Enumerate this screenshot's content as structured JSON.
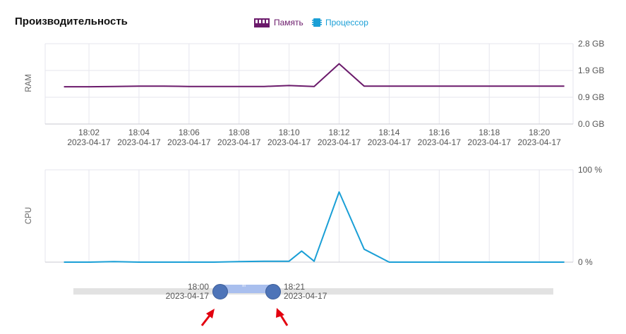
{
  "header": {
    "title": "Производительность",
    "legend": [
      {
        "label": "Память",
        "color": "#6b1a6b",
        "icon": "memory-icon"
      },
      {
        "label": "Процессор",
        "color": "#1a9fd6",
        "icon": "cpu-chip-icon"
      }
    ]
  },
  "chart_data": [
    {
      "type": "line",
      "ylabel": "RAM",
      "yticks": [
        "2.8 GB",
        "1.9 GB",
        "0.9 GB",
        "0.0 GB"
      ],
      "ylim": [
        0,
        2.8
      ],
      "x_time_labels": [
        "18:02",
        "18:04",
        "18:06",
        "18:08",
        "18:10",
        "18:12",
        "18:14",
        "18:16",
        "18:18",
        "18:20"
      ],
      "x_date_label": "2023-04-17",
      "grid": true,
      "series": [
        {
          "name": "Память",
          "color": "#6b1a6b",
          "x": [
            "18:01",
            "18:02",
            "18:03",
            "18:04",
            "18:05",
            "18:06",
            "18:07",
            "18:08",
            "18:09",
            "18:10",
            "18:11",
            "18:12",
            "18:13",
            "18:14",
            "18:15",
            "18:16",
            "18:17",
            "18:18",
            "18:19",
            "18:20",
            "18:21"
          ],
          "values": [
            1.3,
            1.3,
            1.31,
            1.32,
            1.32,
            1.31,
            1.31,
            1.31,
            1.31,
            1.34,
            1.31,
            2.1,
            1.32,
            1.32,
            1.32,
            1.32,
            1.32,
            1.32,
            1.32,
            1.32,
            1.32
          ]
        }
      ]
    },
    {
      "type": "line",
      "ylabel": "CPU",
      "yticks": [
        "100 %",
        "0 %"
      ],
      "ylim": [
        0,
        100
      ],
      "grid": true,
      "series": [
        {
          "name": "Процессор",
          "color": "#1a9fd6",
          "x": [
            "18:01",
            "18:02",
            "18:03",
            "18:04",
            "18:05",
            "18:06",
            "18:07",
            "18:08",
            "18:09",
            "18:10",
            "18:10:30",
            "18:11",
            "18:12",
            "18:13",
            "18:14",
            "18:15",
            "18:16",
            "18:17",
            "18:18",
            "18:19",
            "18:20",
            "18:21"
          ],
          "values": [
            0,
            0,
            0.5,
            0,
            0,
            0,
            0,
            0.5,
            1,
            1,
            12,
            1,
            76,
            14,
            0,
            0,
            0,
            0,
            0,
            0,
            0,
            0
          ]
        }
      ]
    }
  ],
  "time_range": {
    "start_time": "18:00",
    "start_date": "2023-04-17",
    "end_time": "18:21",
    "end_date": "2023-04-17",
    "grip_glyph": "III"
  }
}
